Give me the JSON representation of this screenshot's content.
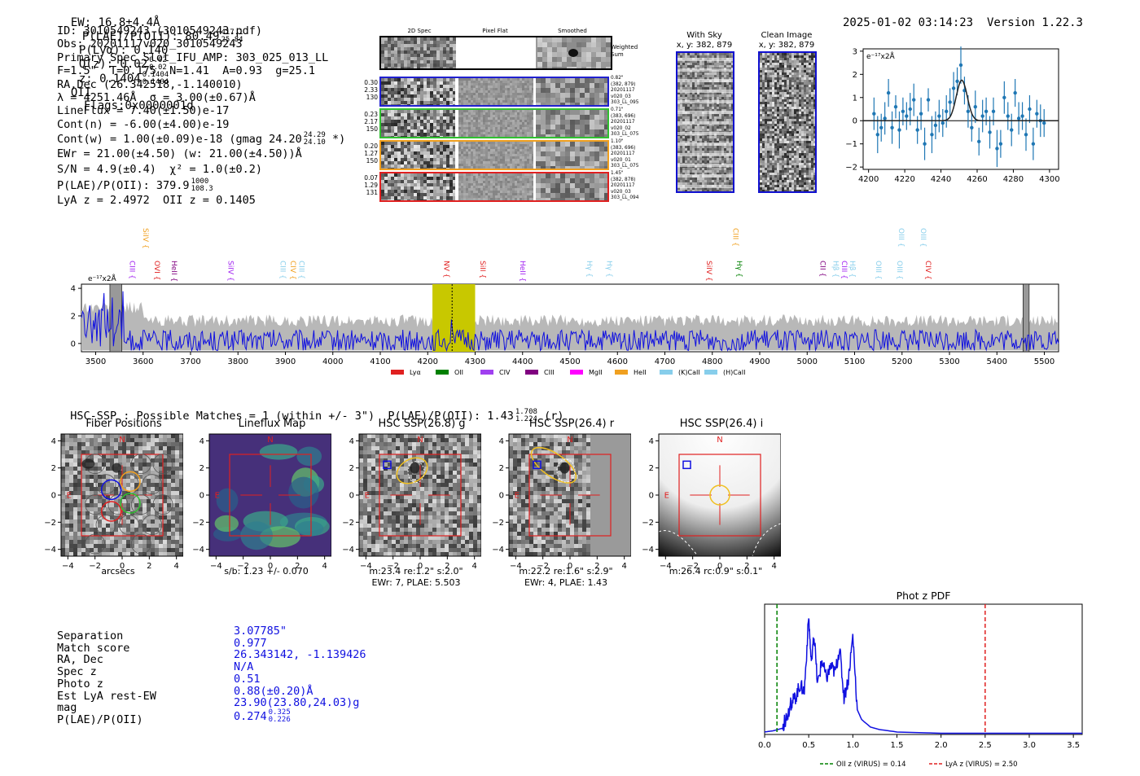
{
  "header": {
    "ew": "EW: 16.8±4.4Å",
    "plae_label": "P(LAE)/P(OII): 80.49",
    "plae_hi": "417.1",
    "plae_lo": "25.84",
    "plya": "P(Lyα): 0.140",
    "qz_label": "Q(z): 0.02",
    "qz_hi": "0.02",
    "qz_lo": "0.02",
    "z_label": "z: 0.1404",
    "z_hi": "0.1404",
    "z_lo": "0.1404",
    "z_line": "OII",
    "flags": "Flags:0x0000001d",
    "datetime": "2025-01-02 03:14:23",
    "version": "Version 1.22.3"
  },
  "info": {
    "id": "ID: 3010549243 (3010549243.pdf)",
    "obs": "Obs: 20201117v020_3010549243",
    "primary": "Primary Spec_Slot_IFU_AMP: 303_025_013_LL",
    "fparams": "F=1.5\"  T=0.175  N=1.41  A=0.93  g=25.1",
    "radec": "RA,Dec (26.342518,-1.140010)",
    "lambda": "λ = 4251.46Å  σ = 3.00(±0.67)Å",
    "lineflux": "LineFlux = 7.40(±1.50)e-17",
    "contn": "Cont(n) = -6.00(±4.00)e-19",
    "contw": "Cont(w) = 1.00(±0.09)e-18 (gmag 24.20",
    "contw_hi": "24.29",
    "contw_lo": "24.10",
    "contw_tail": "*)",
    "ewr": "EWr = 21.00(±4.50) (w: 21.00(±4.50))Å",
    "sn": "S/N = 4.9(±0.4)  χ² = 1.0(±0.2)",
    "plae": "P(LAE)/P(OII): 379.9",
    "plae_hi": "1000",
    "plae_lo": "108.3",
    "lyaz": "LyA z = 2.4972  OII z = 0.1405"
  },
  "spec2d": {
    "col_titles": [
      "2D Spec",
      "Pixel Flat",
      "Smoothed"
    ],
    "weighted_sum": "Weighted\nSum",
    "rows": [
      {
        "left": [
          "0.30",
          "2.33",
          "130"
        ],
        "right": [
          "0.82\"",
          "(382, 879)",
          "20201117",
          "v020_03",
          "303_LL_095"
        ],
        "color": "#2020d0"
      },
      {
        "left": [
          "0.23",
          "2.17",
          "150"
        ],
        "right": [
          "0.71\"",
          "(383, 696)",
          "20201117",
          "v020_02",
          "303_LL_075"
        ],
        "color": "#30c030"
      },
      {
        "left": [
          "0.20",
          "1.27",
          "150"
        ],
        "right": [
          "1.10\"",
          "(383, 696)",
          "20201117",
          "v020_01",
          "303_LL_075"
        ],
        "color": "#f0a020"
      },
      {
        "left": [
          "0.07",
          "1.29",
          "131"
        ],
        "right": [
          "1.45\"",
          "(382, 878)",
          "20201117",
          "v020_03",
          "303_LL_094"
        ],
        "color": "#e02020"
      }
    ]
  },
  "cutouts": {
    "with_sky": "With Sky",
    "with_sky_xy": "x, y: 382, 879",
    "clean": "Clean Image",
    "clean_xy": "x, y: 382, 879"
  },
  "emission_plot": {
    "unit": "e⁻¹⁷x2Å",
    "x_ticks": [
      "4200",
      "4220",
      "4240",
      "4260",
      "4280",
      "4300"
    ],
    "y_ticks": [
      "3",
      "2",
      "1",
      "0",
      "−1",
      "−2"
    ]
  },
  "chart_data": [
    {
      "type": "scatter",
      "title": "",
      "xlabel": "",
      "ylabel": "e-17 x2Å",
      "xlim": [
        4197,
        4305
      ],
      "ylim": [
        -2.1,
        3.1
      ],
      "x": [
        4203,
        4205,
        4207,
        4209,
        4211,
        4213,
        4215,
        4217,
        4219,
        4221,
        4223,
        4225,
        4227,
        4229,
        4231,
        4233,
        4235,
        4237,
        4239,
        4241,
        4243,
        4245,
        4247,
        4249,
        4251,
        4253,
        4255,
        4257,
        4259,
        4261,
        4263,
        4265,
        4267,
        4269,
        4271,
        4273,
        4275,
        4277,
        4279,
        4281,
        4283,
        4285,
        4287,
        4289,
        4291,
        4293,
        4295,
        4297
      ],
      "y": [
        0.3,
        -0.6,
        -0.3,
        0.1,
        1.2,
        -0.3,
        0.6,
        -0.4,
        0.4,
        0.2,
        0.5,
        0.9,
        -0.4,
        0.3,
        -1.0,
        0.9,
        -0.6,
        -0.2,
        0.2,
        -0.1,
        0.4,
        0.8,
        1.4,
        1.7,
        2.4,
        1.3,
        0.4,
        -0.3,
        0.6,
        -0.9,
        0.2,
        0.4,
        -0.5,
        0.4,
        -1.2,
        -1.0,
        1.0,
        0.2,
        -0.4,
        1.2,
        0.1,
        0.2,
        -0.6,
        0.5,
        -1.0,
        0.3,
        0.0,
        -0.1
      ],
      "err": [
        0.7,
        0.8,
        0.6,
        0.7,
        0.6,
        0.7,
        0.5,
        0.8,
        0.6,
        0.6,
        0.7,
        0.7,
        0.6,
        0.7,
        0.7,
        0.5,
        0.8,
        0.6,
        0.7,
        0.6,
        0.7,
        0.6,
        0.7,
        0.6,
        0.8,
        0.6,
        0.7,
        0.6,
        0.7,
        0.6,
        0.7,
        0.6,
        0.7,
        0.6,
        0.8,
        0.6,
        0.7,
        0.6,
        0.7,
        0.6,
        0.7,
        0.6,
        0.7,
        0.6,
        0.7,
        0.6,
        0.7,
        0.6
      ],
      "fit": {
        "center": 4251.5,
        "sigma": 3.0,
        "amplitude": 1.75,
        "baseline": 0.0
      }
    },
    {
      "type": "line",
      "title": "Full spectrum",
      "ylabel": "e-17 x2Å",
      "xlim": [
        3470,
        5530
      ],
      "ylim": [
        -0.6,
        4.3
      ],
      "x_ticks": [
        3500,
        3600,
        3700,
        3800,
        3900,
        4000,
        4100,
        4200,
        4300,
        4400,
        4500,
        4600,
        4700,
        4800,
        4900,
        5000,
        5100,
        5200,
        5300,
        5400,
        5500
      ],
      "y_ticks": [
        0,
        2,
        4
      ],
      "highlight_range": [
        4210,
        4300
      ],
      "line_marker": 4251.46,
      "line_labels": [
        {
          "name": "CIII",
          "x": 3567,
          "color": "#a020f0",
          "row": 1
        },
        {
          "name": "SiIV",
          "x": 3595,
          "color": "#f0a020",
          "row": 0
        },
        {
          "name": "OVI",
          "x": 3619,
          "color": "#e02020",
          "row": 1
        },
        {
          "name": "HeII",
          "x": 3655,
          "color": "#800080",
          "row": 1
        },
        {
          "name": "SiIV",
          "x": 3775,
          "color": "#a020f0",
          "row": 1
        },
        {
          "name": "CIII",
          "x": 3885,
          "color": "#87ceeb",
          "row": 1
        },
        {
          "name": "CIV",
          "x": 3906,
          "color": "#f0a020",
          "row": 1
        },
        {
          "name": "CIII",
          "x": 3924,
          "color": "#87ceeb",
          "row": 1
        },
        {
          "name": "NV",
          "x": 4230,
          "color": "#e02020",
          "row": 1
        },
        {
          "name": "SiII",
          "x": 4306,
          "color": "#e02020",
          "row": 1
        },
        {
          "name": "HeII",
          "x": 4390,
          "color": "#a020f0",
          "row": 1
        },
        {
          "name": "Hγ",
          "x": 4531,
          "color": "#87ceeb",
          "row": 1
        },
        {
          "name": "Hγ",
          "x": 4573,
          "color": "#87ceeb",
          "row": 1
        },
        {
          "name": "SiIV",
          "x": 4783,
          "color": "#e02020",
          "row": 1
        },
        {
          "name": "CIII",
          "x": 4839,
          "color": "#f0a020",
          "row": 0
        },
        {
          "name": "Hγ",
          "x": 4847,
          "color": "#008000",
          "row": 1
        },
        {
          "name": "CII",
          "x": 5023,
          "color": "#800080",
          "row": 1
        },
        {
          "name": "Hβ",
          "x": 5050,
          "color": "#87ceeb",
          "row": 1
        },
        {
          "name": "CIII",
          "x": 5068,
          "color": "#a020f0",
          "row": 1
        },
        {
          "name": "Hβ",
          "x": 5085,
          "color": "#87ceeb",
          "row": 1
        },
        {
          "name": "OIII",
          "x": 5140,
          "color": "#87ceeb",
          "row": 1
        },
        {
          "name": "OIII",
          "x": 5185,
          "color": "#87ceeb",
          "row": 1
        },
        {
          "name": "OIII",
          "x": 5188,
          "color": "#87ceeb",
          "row": 0
        },
        {
          "name": "OIII",
          "x": 5235,
          "color": "#87ceeb",
          "row": 0
        },
        {
          "name": "CIV",
          "x": 5245,
          "color": "#e02020",
          "row": 1
        }
      ],
      "legend": [
        {
          "name": "Lyα",
          "color": "#e02020"
        },
        {
          "name": "OII",
          "color": "#008000"
        },
        {
          "name": "CIV",
          "color": "#a040f0"
        },
        {
          "name": "CIII",
          "color": "#800080"
        },
        {
          "name": "MgII",
          "color": "#ff00ff"
        },
        {
          "name": "HeII",
          "color": "#f0a020"
        },
        {
          "name": "(K)CaII",
          "color": "#87ceeb"
        },
        {
          "name": "(H)CaII",
          "color": "#87ceeb"
        }
      ]
    },
    {
      "type": "line",
      "title": "Phot z PDF",
      "xlabel": "",
      "xlim": [
        0.0,
        3.6
      ],
      "ylim": [
        0,
        1.05
      ],
      "x_ticks": [
        "0.0",
        "0.5",
        "1.0",
        "1.5",
        "2.0",
        "2.5",
        "3.0",
        "3.5"
      ],
      "x": [
        0.0,
        0.1,
        0.2,
        0.25,
        0.3,
        0.35,
        0.4,
        0.45,
        0.5,
        0.53,
        0.56,
        0.6,
        0.65,
        0.7,
        0.75,
        0.8,
        0.85,
        0.9,
        0.95,
        1.0,
        1.05,
        1.1,
        1.2,
        1.3,
        1.5,
        2.0,
        2.5,
        3.0,
        3.6
      ],
      "y": [
        0.02,
        0.03,
        0.05,
        0.15,
        0.25,
        0.3,
        0.4,
        0.35,
        0.95,
        0.55,
        0.8,
        0.4,
        0.6,
        0.45,
        0.55,
        0.5,
        0.7,
        0.3,
        0.45,
        0.8,
        0.2,
        0.12,
        0.06,
        0.04,
        0.02,
        0.01,
        0.01,
        0.01,
        0.01
      ],
      "vlines": [
        {
          "x": 0.14,
          "color": "#008000",
          "label": "OII z (VIRUS) = 0.14"
        },
        {
          "x": 2.5,
          "color": "#e02020",
          "label": "LyA z (VIRUS) = 2.50"
        }
      ]
    }
  ],
  "hsc": {
    "summary": "HSC-SSP : Possible Matches = 1 (within +/- 3\")  P(LAE)/P(OII): 1.43",
    "summary_hi": "1.708",
    "summary_lo": "1.224",
    "summary_tail": "(r)",
    "panels": [
      {
        "title": "Fiber Positions",
        "caption": "arcsecs",
        "caption2": ""
      },
      {
        "title": "Lineflux Map",
        "caption": "s/b: 1.23 +/- 0.070",
        "caption2": ""
      },
      {
        "title": "HSC SSP(26.8) g",
        "caption": "m:23.4  re:1.2\"  s:2.0\"",
        "caption2": "EWr: 7, PLAE: 5.503"
      },
      {
        "title": "HSC SSP(26.4) r",
        "caption": "m:22.2  re:1.6\"  s:2.9\"",
        "caption2": "EWr: 4, PLAE: 1.43"
      },
      {
        "title": "HSC SSP(26.4) i",
        "caption": "m:26.4 rc:0.9\"  s:0.1\"",
        "caption2": ""
      }
    ],
    "axis_ticks_y": [
      "4",
      "2",
      "0",
      "−2",
      "−4"
    ],
    "axis_ticks_x": [
      "−4",
      "−2",
      "0",
      "2",
      "4"
    ],
    "north": "N",
    "east": "E"
  },
  "match": {
    "labels": [
      "Separation",
      "Match score",
      "RA, Dec",
      "Spec z",
      "Photo z",
      "Est LyA rest-EW",
      "mag",
      "P(LAE)/P(OII)"
    ],
    "values": [
      "3.07785\"",
      "0.977",
      "26.343142, -1.139426",
      "N/A",
      "0.51",
      "0.88(±0.20)Å",
      "23.90(23.80,24.03)g",
      "0.274"
    ],
    "plae_hi": "0.325",
    "plae_lo": "0.226"
  }
}
